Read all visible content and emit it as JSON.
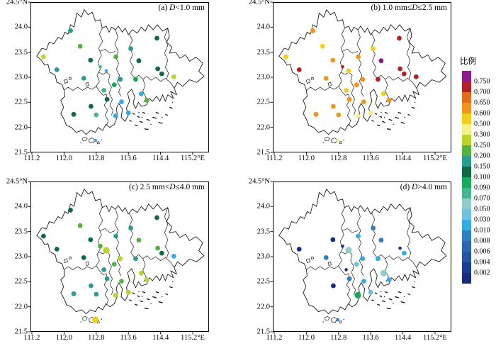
{
  "chart_data": {
    "type": "scatter",
    "subtype": "2x2 geographic station maps with categorical color scale",
    "axes": {
      "lon_tick_labels": [
        "111.2",
        "112.0",
        "112.8",
        "113.6",
        "114.4",
        "115.2°E"
      ],
      "lon_tick_values": [
        111.2,
        112.0,
        112.8,
        113.6,
        114.4,
        115.2
      ],
      "lat_tick_labels": [
        "24.5°N",
        "24.0",
        "23.5",
        "23.0",
        "22.5",
        "22.0",
        "21.5"
      ],
      "lat_tick_values": [
        24.5,
        24.0,
        23.5,
        23.0,
        22.5,
        22.0,
        21.5
      ],
      "lon_range": [
        111.2,
        115.2
      ],
      "lat_range": [
        21.5,
        24.5
      ],
      "grid": false
    },
    "panels": [
      {
        "id": "a",
        "title_pre": "(a) ",
        "title_d": "D",
        "title_post": "<1.0 mm",
        "title_full": "(a) D<1.0 mm"
      },
      {
        "id": "b",
        "title_pre": "(b) 1.0 mm≤",
        "title_d": "D",
        "title_post": "≤2.5 mm",
        "title_full": "(b) 1.0 mm≤D≤2.5 mm"
      },
      {
        "id": "c",
        "title_pre": "(c) 2.5 mm<",
        "title_d": "D",
        "title_post": "≤4.0 mm",
        "title_full": "(c) 2.5 mm<D≤4.0 mm"
      },
      {
        "id": "d",
        "title_pre": "(d) ",
        "title_d": "D",
        "title_post": ">4.0 mm",
        "title_full": "(d) D>4.0 mm"
      }
    ],
    "colorbar": {
      "title": "比例",
      "tick_labels": [
        "0.750",
        "0.700",
        "0.650",
        "0.600",
        "0.500",
        "0.300",
        "0.250",
        "0.200",
        "0.150",
        "0.100",
        "0.090",
        "0.070",
        "0.050",
        "0.030",
        "0.010",
        "0.008",
        "0.006",
        "0.004",
        "0.002"
      ],
      "segments_top_to_bottom": [
        "purple",
        "darkred",
        "orangered",
        "orange",
        "yellow",
        "paleyellow",
        "yellowgreen",
        "green",
        "teal",
        "darkgreen",
        "emerald",
        "seagreen",
        "palecyan",
        "lightblue",
        "sky",
        "blue",
        "blue2",
        "blue3",
        "darkblue",
        "navy"
      ]
    },
    "color_bins": {
      "purple": {
        "hex": "#8C1A8C",
        "range": ">0.750"
      },
      "darkred": {
        "hex": "#B32025",
        "range": "0.700-0.750"
      },
      "orangered": {
        "hex": "#E06C1C",
        "range": "0.650-0.700"
      },
      "orange": {
        "hex": "#F0941E",
        "range": "0.600-0.650"
      },
      "yellow": {
        "hex": "#F2CF1C",
        "range": "0.500-0.600"
      },
      "paleyellow": {
        "hex": "#F5F08C",
        "range": "0.300-0.500"
      },
      "yellowgreen": {
        "hex": "#BBD52C",
        "range": "0.250-0.300"
      },
      "green": {
        "hex": "#52B43C",
        "range": "0.200-0.250"
      },
      "teal": {
        "hex": "#2A9D8F",
        "range": "0.150-0.200"
      },
      "darkgreen": {
        "hex": "#0E6B40",
        "range": "0.100-0.150"
      },
      "emerald": {
        "hex": "#18A95B",
        "range": "0.090-0.100"
      },
      "seagreen": {
        "hex": "#46B692",
        "range": "0.070-0.090"
      },
      "palecyan": {
        "hex": "#8ECFCB",
        "range": "0.050-0.070"
      },
      "lightblue": {
        "hex": "#70C2E3",
        "range": "0.030-0.050"
      },
      "sky": {
        "hex": "#35AAE5",
        "range": "0.010-0.030"
      },
      "blue": {
        "hex": "#2E7EC5",
        "range": "0.008-0.010"
      },
      "blue2": {
        "hex": "#2A66B5",
        "range": "0.006-0.008"
      },
      "blue3": {
        "hex": "#2452A5",
        "range": "0.004-0.006"
      },
      "darkblue": {
        "hex": "#1C3D96",
        "range": "0.002-0.004"
      },
      "navy": {
        "hex": "#152C80",
        "range": "<0.002"
      }
    },
    "stations": [
      {
        "lon": 112.16,
        "lat": 23.93,
        "a": "teal",
        "b": "orange",
        "c": "darkgreen",
        "d": null
      },
      {
        "lon": 112.4,
        "lat": 23.62,
        "a": "green",
        "b": "yellow",
        "c": "green",
        "d": null
      },
      {
        "lon": 111.49,
        "lat": 23.41,
        "a": "yellowgreen",
        "b": "yellow",
        "c": "darkgreen",
        "d": null
      },
      {
        "lon": 112.66,
        "lat": 23.34,
        "a": "darkgreen",
        "b": "orange",
        "c": "darkgreen",
        "d": "navy"
      },
      {
        "lon": 111.82,
        "lat": 23.15,
        "a": "teal",
        "b": "darkred",
        "c": "darkgreen",
        "d": "navy"
      },
      {
        "lon": 112.9,
        "lat": 23.21,
        "a": "seagreen",
        "b": "darkred",
        "c": "green",
        "d": "navy",
        "a_sz": "sm",
        "b_sz": "sm",
        "d_sz": "sm"
      },
      {
        "lon": 113.05,
        "lat": 23.13,
        "a": "sky",
        "b": "yellow",
        "c": "yellowgreen",
        "d": "palecyan",
        "a_sz": "sm",
        "c_sz": "lg",
        "d_sz": "lg"
      },
      {
        "lon": 112.49,
        "lat": 22.98,
        "a": "teal",
        "b": "orange",
        "c": "darkgreen",
        "d": "blue"
      },
      {
        "lon": 113.29,
        "lat": 23.41,
        "a": "green",
        "b": "orange",
        "c": "teal",
        "d": "sky"
      },
      {
        "lon": 113.66,
        "lat": 23.57,
        "a": "teal",
        "b": "yellow",
        "c": "teal",
        "d": "blue"
      },
      {
        "lon": 113.86,
        "lat": 23.33,
        "a": "darkgreen",
        "b": "purple",
        "c": "green",
        "d": "blue"
      },
      {
        "lon": 114.31,
        "lat": 23.78,
        "a": "darkgreen",
        "b": "darkred",
        "c": "darkgreen",
        "d": null
      },
      {
        "lon": 114.33,
        "lat": 23.17,
        "a": "darkgreen",
        "b": "darkred",
        "c": "green",
        "d": "navy",
        "d_sz": "sm"
      },
      {
        "lon": 114.43,
        "lat": 23.07,
        "a": "darkgreen",
        "b": "darkred",
        "c": "darkgreen",
        "d": "sky"
      },
      {
        "lon": 114.73,
        "lat": 23.01,
        "a": "yellowgreen",
        "b": "darkred",
        "c": "sky",
        "d": null
      },
      {
        "lon": 113.4,
        "lat": 22.96,
        "a": "teal",
        "b": "orange",
        "c": "yellowgreen",
        "d": "sky"
      },
      {
        "lon": 113.78,
        "lat": 22.96,
        "a": "emerald",
        "b": "darkred",
        "c": "teal",
        "d": "sky"
      },
      {
        "lon": 113.25,
        "lat": 22.85,
        "a": "emerald",
        "b": "orange",
        "c": "green",
        "d": "lightblue"
      },
      {
        "lon": 112.99,
        "lat": 22.74,
        "a": "seagreen",
        "b": "yellow",
        "c": "teal",
        "d": "navy",
        "d_sz": "sm"
      },
      {
        "lon": 113.92,
        "lat": 22.67,
        "a": "sky",
        "b": "yellow",
        "c": "yellowgreen",
        "d": "palecyan",
        "d_sz": "lg"
      },
      {
        "lon": 113.43,
        "lat": 22.51,
        "a": "sky",
        "b": "orange",
        "c": "green",
        "d": "sky"
      },
      {
        "lon": 114.06,
        "lat": 22.54,
        "a": "green",
        "b": "orange",
        "c": "yellowgreen",
        "d": "sky"
      },
      {
        "lon": 112.67,
        "lat": 22.42,
        "a": "darkgreen",
        "b": "orange",
        "c": "teal",
        "d": "navy"
      },
      {
        "lon": 112.24,
        "lat": 22.26,
        "a": "darkgreen",
        "b": "orange",
        "c": "teal",
        "d": null
      },
      {
        "lon": 112.8,
        "lat": 22.25,
        "a": "seagreen",
        "b": "orange",
        "c": "teal",
        "d": null
      },
      {
        "lon": 113.28,
        "lat": 22.23,
        "a": "sky",
        "b": "paleyellow",
        "c": "yellowgreen",
        "d": "emerald",
        "d_sz": "lg"
      },
      {
        "lon": 113.6,
        "lat": 22.29,
        "a": "sky",
        "b": "paleyellow",
        "c": "yellowgreen",
        "d": "lightblue"
      },
      {
        "lon": 112.78,
        "lat": 21.74,
        "a": "sky",
        "b": "paleyellow",
        "c": "yellow",
        "d": "blue",
        "a_sz": "sm",
        "b_sz": "sm",
        "c_sz": "lg",
        "d_sz": "sm"
      },
      {
        "lon": 113.07,
        "lat": 22.56,
        "a": "darkgreen",
        "b": "orange",
        "c": "teal",
        "d": "blue"
      }
    ]
  }
}
